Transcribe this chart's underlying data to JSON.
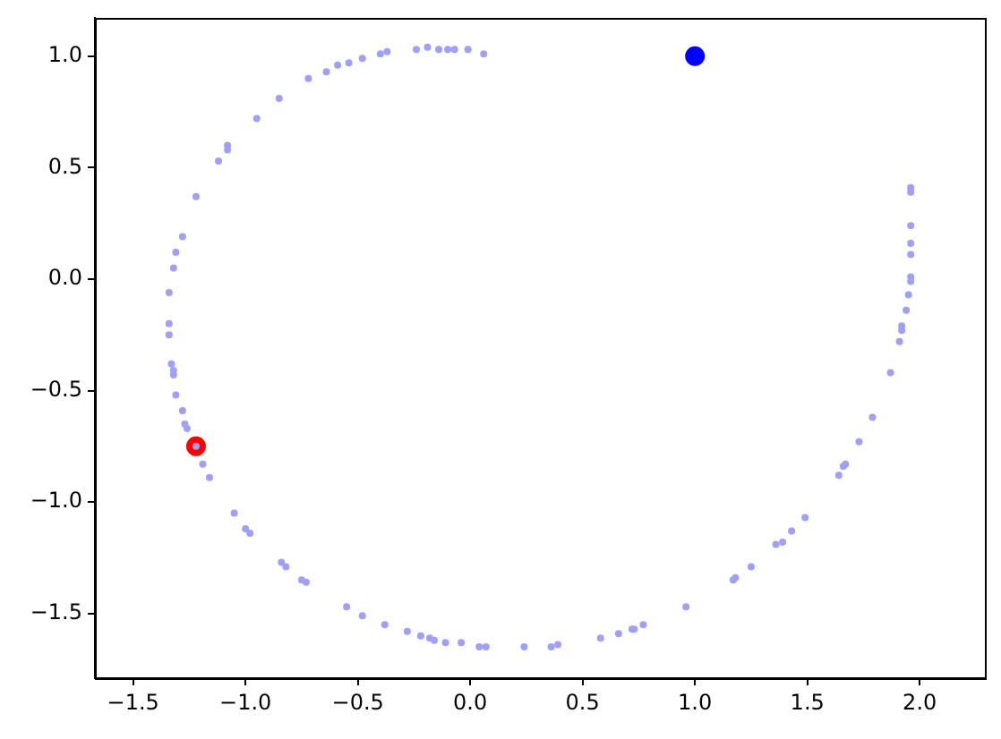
{
  "chart_data": {
    "type": "scatter",
    "xlim": [
      -1.67,
      2.29
    ],
    "ylim": [
      -1.79,
      1.17
    ],
    "xticks": [
      {
        "value": -1.5,
        "label": "−1.5"
      },
      {
        "value": -1.0,
        "label": "−1.0"
      },
      {
        "value": -0.5,
        "label": "−0.5"
      },
      {
        "value": 0,
        "label": "0.0"
      },
      {
        "value": 0.5,
        "label": "0.5"
      },
      {
        "value": 1.0,
        "label": "1.0"
      },
      {
        "value": 1.5,
        "label": "1.5"
      },
      {
        "value": 2.0,
        "label": "2.0"
      }
    ],
    "yticks": [
      {
        "value": -1.5,
        "label": "−1.5"
      },
      {
        "value": -1.0,
        "label": "−1.0"
      },
      {
        "value": -0.5,
        "label": "−0.5"
      },
      {
        "value": 0,
        "label": "0.0"
      },
      {
        "value": 0.5,
        "label": "0.5"
      },
      {
        "value": 1.0,
        "label": "1.0"
      }
    ],
    "grid": false,
    "legend": false,
    "marker": "circle",
    "series": [
      {
        "color": "#9f9fff",
        "x": [
          0.06,
          -0.01,
          -0.07,
          -0.1,
          -0.14,
          -0.19,
          -0.24,
          -0.37,
          -0.4,
          -0.48,
          -0.54,
          -0.59,
          -0.64,
          -0.72,
          -0.85,
          -0.95,
          -1.08,
          -1.08,
          -1.12,
          -1.22,
          -1.28,
          -1.31,
          -1.32,
          -1.34,
          -1.34,
          -1.34,
          -1.33,
          -1.32,
          -1.32,
          -1.31,
          -1.28,
          -1.27,
          -1.26,
          -1.22,
          -1.19,
          -1.16,
          -1.05,
          -1.0,
          -0.98,
          -0.84,
          -0.82,
          -0.75,
          -0.73,
          -0.55,
          -0.48,
          -0.38,
          -0.28,
          -0.22,
          -0.18,
          -0.16,
          -0.11,
          -0.04,
          0.04,
          0.07,
          0.24,
          0.36,
          0.39,
          0.58,
          0.66,
          0.72,
          0.73,
          0.77,
          0.96,
          1.17,
          1.18,
          1.25,
          1.36,
          1.39,
          1.43,
          1.49,
          1.64,
          1.66,
          1.67,
          1.73,
          1.79,
          1.87,
          1.91,
          1.92,
          1.92,
          1.94,
          1.95,
          1.96,
          1.96,
          1.96,
          1.96,
          1.96,
          1.96,
          1.96
        ],
        "values": [
          1.01,
          1.03,
          1.03,
          1.03,
          1.03,
          1.04,
          1.03,
          1.02,
          1.01,
          0.99,
          0.97,
          0.96,
          0.93,
          0.9,
          0.81,
          0.72,
          0.6,
          0.58,
          0.53,
          0.37,
          0.19,
          0.12,
          0.05,
          -0.06,
          -0.2,
          -0.25,
          -0.38,
          -0.41,
          -0.43,
          -0.52,
          -0.59,
          -0.65,
          -0.67,
          -0.75,
          -0.83,
          -0.89,
          -1.05,
          -1.12,
          -1.14,
          -1.27,
          -1.29,
          -1.35,
          -1.36,
          -1.47,
          -1.51,
          -1.55,
          -1.58,
          -1.6,
          -1.61,
          -1.62,
          -1.63,
          -1.63,
          -1.65,
          -1.65,
          -1.65,
          -1.65,
          -1.64,
          -1.61,
          -1.59,
          -1.57,
          -1.57,
          -1.55,
          -1.47,
          -1.35,
          -1.34,
          -1.29,
          -1.19,
          -1.18,
          -1.13,
          -1.07,
          -0.88,
          -0.84,
          -0.83,
          -0.73,
          -0.62,
          -0.42,
          -0.28,
          -0.23,
          -0.21,
          -0.14,
          -0.07,
          -0.01,
          0.01,
          0.11,
          0.16,
          0.24,
          0.39,
          0.41
        ]
      },
      {
        "color": "#0000ff",
        "x": [
          1.0
        ],
        "values": [
          1.0
        ]
      },
      {
        "color": "#ff0000",
        "x": [
          -1.22
        ],
        "values": [
          -0.75
        ]
      }
    ]
  }
}
